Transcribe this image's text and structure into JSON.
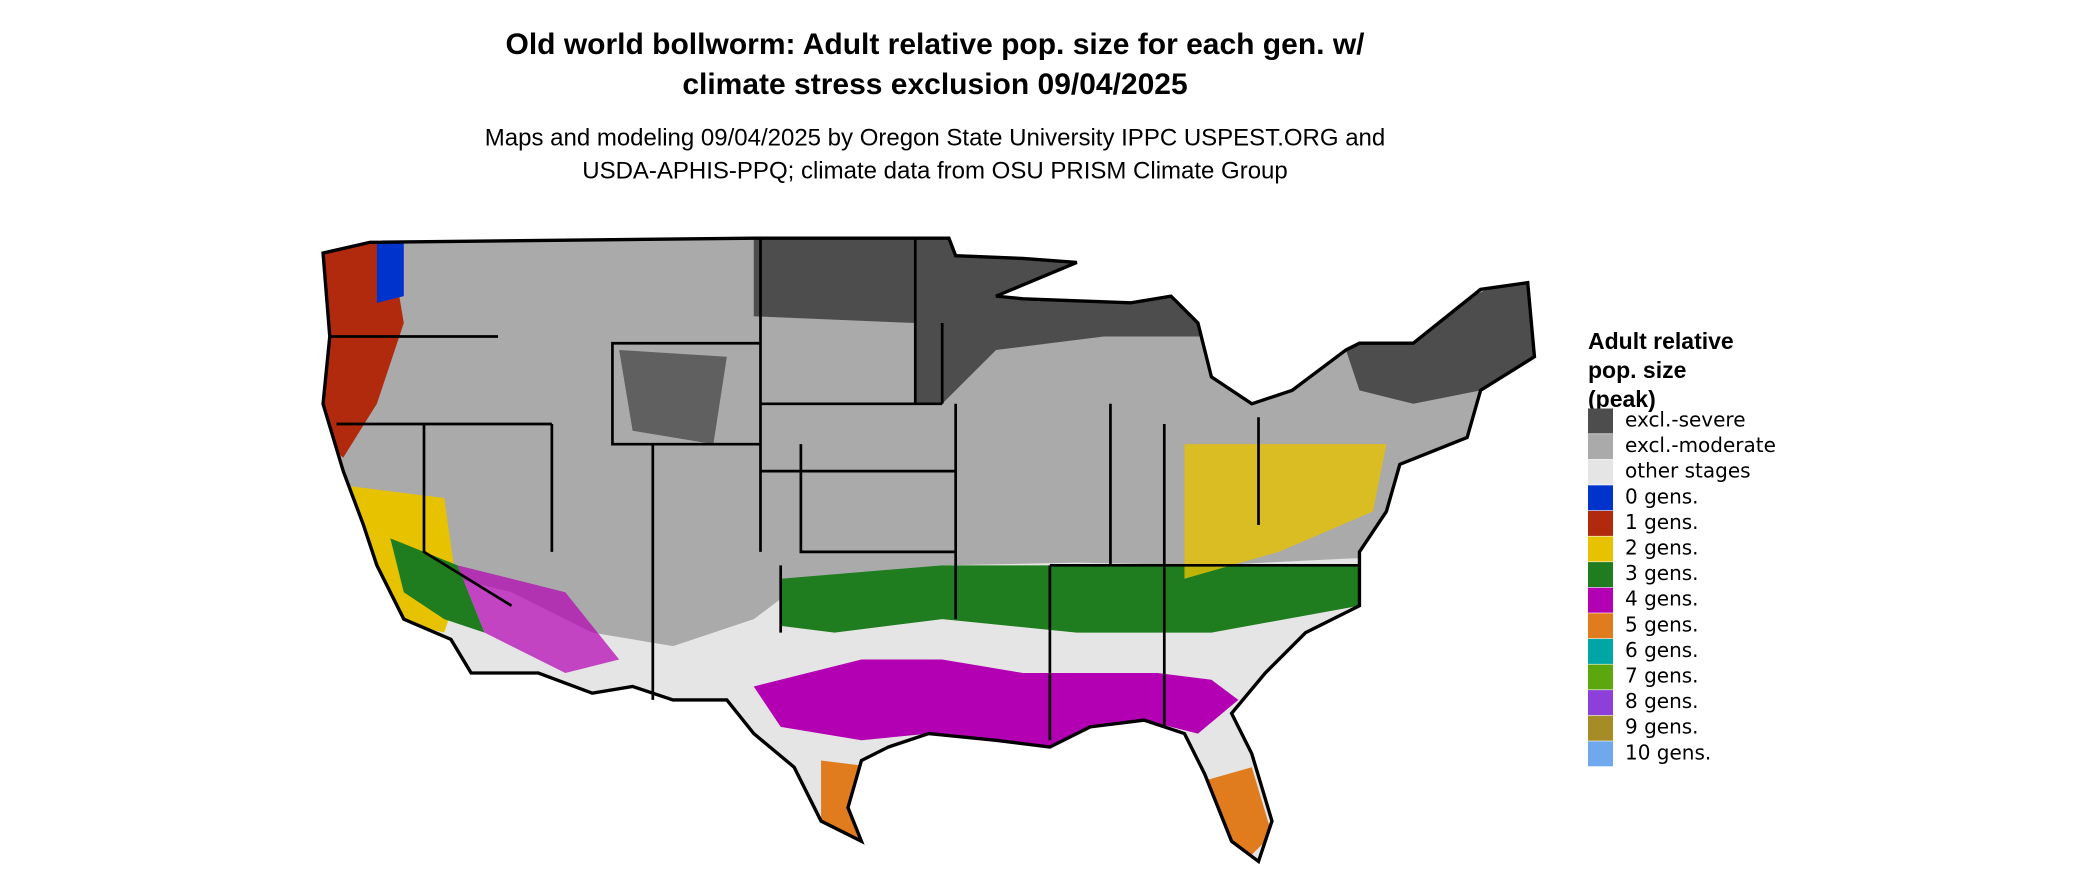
{
  "title": [
    "Old world bollworm: Adult relative pop. size for each gen. w/",
    "climate stress exclusion 09/04/2025"
  ],
  "subtitle": [
    "Maps and modeling 09/04/2025 by Oregon State University IPPC USPEST.ORG and",
    "USDA-APHIS-PPQ; climate data from OSU PRISM Climate Group"
  ],
  "legend": {
    "title": [
      "Adult relative",
      "pop. size",
      "(peak)"
    ],
    "items": [
      {
        "label": "excl.-severe",
        "color": "#4d4d4d"
      },
      {
        "label": "excl.-moderate",
        "color": "#aaaaaa"
      },
      {
        "label": "other stages",
        "color": "#e5e5e5"
      },
      {
        "label": "0 gens.",
        "color": "#0033cc"
      },
      {
        "label": "1 gens.",
        "color": "#b22a0e"
      },
      {
        "label": "2 gens.",
        "color": "#e6c200"
      },
      {
        "label": "3 gens.",
        "color": "#1f7d1f"
      },
      {
        "label": "4 gens.",
        "color": "#b300b3"
      },
      {
        "label": "5 gens.",
        "color": "#e07c1e"
      },
      {
        "label": "6 gens.",
        "color": "#00a6a6"
      },
      {
        "label": "7 gens.",
        "color": "#5ca60e"
      },
      {
        "label": "8 gens.",
        "color": "#8c3fd9"
      },
      {
        "label": "9 gens.",
        "color": "#a68c26"
      },
      {
        "label": "10 gens.",
        "color": "#6fa8ec"
      }
    ]
  }
}
